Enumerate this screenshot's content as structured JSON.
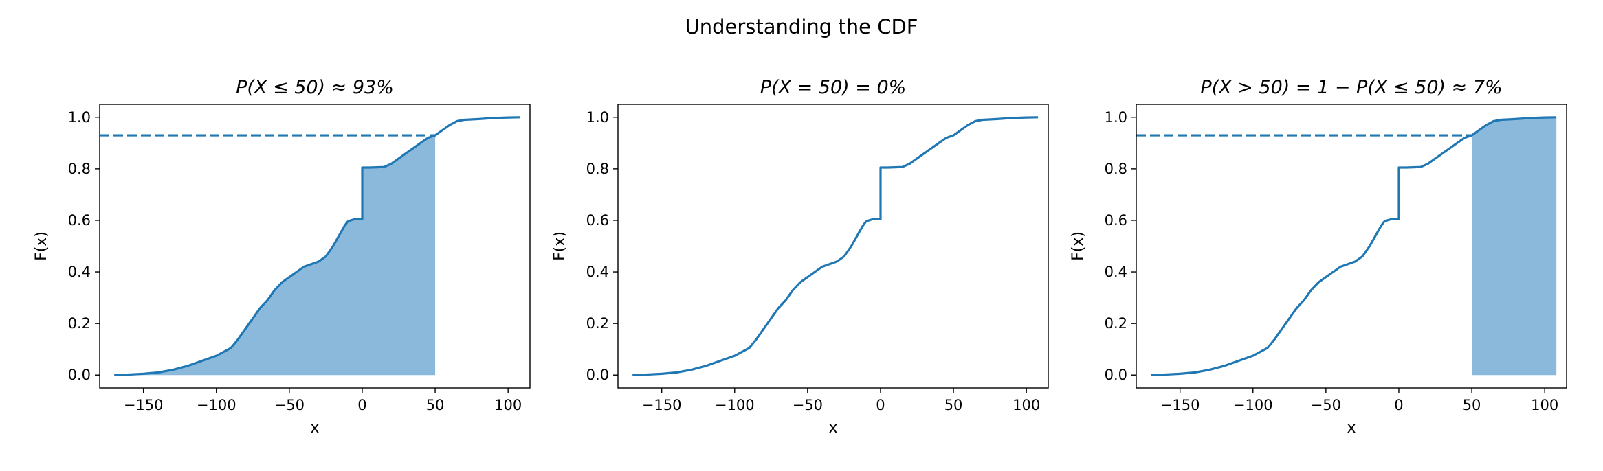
{
  "suptitle": "Understanding the CDF",
  "colors": {
    "line": "#1f77b4",
    "fill": "#8bb9dc",
    "axis": "#000000",
    "background": "#ffffff"
  },
  "chart_data": [
    {
      "type": "line",
      "title": "P(X ≤ 50) ≈ 93%",
      "xlabel": "x",
      "ylabel": "F(x)",
      "xlim": [
        -180,
        115
      ],
      "ylim": [
        -0.05,
        1.05
      ],
      "xticks": [
        -150,
        -100,
        -50,
        0,
        50,
        100
      ],
      "xtick_labels": [
        "−150",
        "−100",
        "−50",
        "0",
        "50",
        "100"
      ],
      "yticks": [
        0.0,
        0.2,
        0.4,
        0.6,
        0.8,
        1.0
      ],
      "ytick_labels": [
        "0.0",
        "0.2",
        "0.4",
        "0.6",
        "0.8",
        "1.0"
      ],
      "grid": false,
      "series": [
        {
          "x": [
            -170,
            -160,
            -150,
            -140,
            -130,
            -120,
            -110,
            -100,
            -90,
            -85,
            -80,
            -75,
            -70,
            -65,
            -60,
            -55,
            -50,
            -45,
            -40,
            -35,
            -30,
            -25,
            -20,
            -15,
            -12,
            -10,
            -8,
            -5,
            -3,
            -1,
            0,
            0.01,
            5,
            10,
            15,
            20,
            25,
            30,
            35,
            40,
            45,
            50,
            55,
            60,
            65,
            70,
            80,
            90,
            100,
            108
          ],
          "y": [
            0.0,
            0.002,
            0.005,
            0.01,
            0.02,
            0.035,
            0.055,
            0.075,
            0.105,
            0.14,
            0.18,
            0.22,
            0.26,
            0.29,
            0.33,
            0.36,
            0.38,
            0.4,
            0.42,
            0.43,
            0.44,
            0.46,
            0.5,
            0.55,
            0.58,
            0.595,
            0.6,
            0.605,
            0.605,
            0.605,
            0.605,
            0.805,
            0.805,
            0.806,
            0.807,
            0.82,
            0.84,
            0.86,
            0.88,
            0.9,
            0.92,
            0.93,
            0.95,
            0.97,
            0.985,
            0.99,
            0.993,
            0.997,
            0.999,
            1.0
          ]
        }
      ],
      "shade": {
        "from": -170,
        "to": 50
      },
      "hline": {
        "y": 0.93,
        "x_from": -180,
        "x_to": 50,
        "style": "dashed"
      }
    },
    {
      "type": "line",
      "title": "P(X = 50) = 0%",
      "xlabel": "x",
      "ylabel": "F(x)",
      "xlim": [
        -180,
        115
      ],
      "ylim": [
        -0.05,
        1.05
      ],
      "xticks": [
        -150,
        -100,
        -50,
        0,
        50,
        100
      ],
      "xtick_labels": [
        "−150",
        "−100",
        "−50",
        "0",
        "50",
        "100"
      ],
      "yticks": [
        0.0,
        0.2,
        0.4,
        0.6,
        0.8,
        1.0
      ],
      "ytick_labels": [
        "0.0",
        "0.2",
        "0.4",
        "0.6",
        "0.8",
        "1.0"
      ],
      "grid": false,
      "series": [
        {
          "x": [
            -170,
            -160,
            -150,
            -140,
            -130,
            -120,
            -110,
            -100,
            -90,
            -85,
            -80,
            -75,
            -70,
            -65,
            -60,
            -55,
            -50,
            -45,
            -40,
            -35,
            -30,
            -25,
            -20,
            -15,
            -12,
            -10,
            -8,
            -5,
            -3,
            -1,
            0,
            0.01,
            5,
            10,
            15,
            20,
            25,
            30,
            35,
            40,
            45,
            50,
            55,
            60,
            65,
            70,
            80,
            90,
            100,
            108
          ],
          "y": [
            0.0,
            0.002,
            0.005,
            0.01,
            0.02,
            0.035,
            0.055,
            0.075,
            0.105,
            0.14,
            0.18,
            0.22,
            0.26,
            0.29,
            0.33,
            0.36,
            0.38,
            0.4,
            0.42,
            0.43,
            0.44,
            0.46,
            0.5,
            0.55,
            0.58,
            0.595,
            0.6,
            0.605,
            0.605,
            0.605,
            0.605,
            0.805,
            0.805,
            0.806,
            0.807,
            0.82,
            0.84,
            0.86,
            0.88,
            0.9,
            0.92,
            0.93,
            0.95,
            0.97,
            0.985,
            0.99,
            0.993,
            0.997,
            0.999,
            1.0
          ]
        }
      ]
    },
    {
      "type": "line",
      "title": "P(X > 50) = 1 − P(X ≤ 50) ≈ 7%",
      "xlabel": "x",
      "ylabel": "F(x)",
      "xlim": [
        -180,
        115
      ],
      "ylim": [
        -0.05,
        1.05
      ],
      "xticks": [
        -150,
        -100,
        -50,
        0,
        50,
        100
      ],
      "xtick_labels": [
        "−150",
        "−100",
        "−50",
        "0",
        "50",
        "100"
      ],
      "yticks": [
        0.0,
        0.2,
        0.4,
        0.6,
        0.8,
        1.0
      ],
      "ytick_labels": [
        "0.0",
        "0.2",
        "0.4",
        "0.6",
        "0.8",
        "1.0"
      ],
      "grid": false,
      "series": [
        {
          "x": [
            -170,
            -160,
            -150,
            -140,
            -130,
            -120,
            -110,
            -100,
            -90,
            -85,
            -80,
            -75,
            -70,
            -65,
            -60,
            -55,
            -50,
            -45,
            -40,
            -35,
            -30,
            -25,
            -20,
            -15,
            -12,
            -10,
            -8,
            -5,
            -3,
            -1,
            0,
            0.01,
            5,
            10,
            15,
            20,
            25,
            30,
            35,
            40,
            45,
            50,
            55,
            60,
            65,
            70,
            80,
            90,
            100,
            108
          ],
          "y": [
            0.0,
            0.002,
            0.005,
            0.01,
            0.02,
            0.035,
            0.055,
            0.075,
            0.105,
            0.14,
            0.18,
            0.22,
            0.26,
            0.29,
            0.33,
            0.36,
            0.38,
            0.4,
            0.42,
            0.43,
            0.44,
            0.46,
            0.5,
            0.55,
            0.58,
            0.595,
            0.6,
            0.605,
            0.605,
            0.605,
            0.605,
            0.805,
            0.805,
            0.806,
            0.807,
            0.82,
            0.84,
            0.86,
            0.88,
            0.9,
            0.92,
            0.93,
            0.95,
            0.97,
            0.985,
            0.99,
            0.993,
            0.997,
            0.999,
            1.0
          ]
        }
      ],
      "shade": {
        "from": 50,
        "to": 108
      },
      "hline": {
        "y": 0.93,
        "x_from": -180,
        "x_to": 50,
        "style": "dashed"
      }
    }
  ]
}
